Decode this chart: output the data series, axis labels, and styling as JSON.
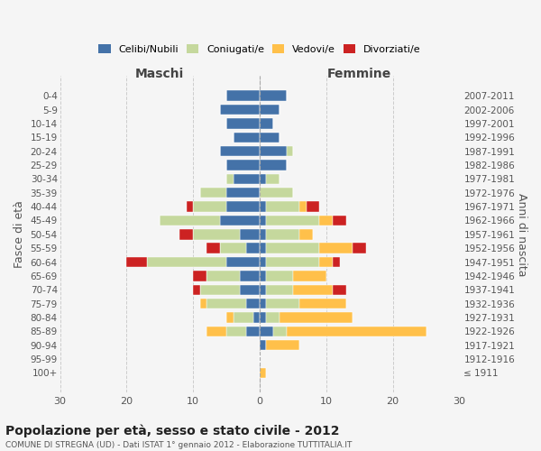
{
  "age_groups": [
    "100+",
    "95-99",
    "90-94",
    "85-89",
    "80-84",
    "75-79",
    "70-74",
    "65-69",
    "60-64",
    "55-59",
    "50-54",
    "45-49",
    "40-44",
    "35-39",
    "30-34",
    "25-29",
    "20-24",
    "15-19",
    "10-14",
    "5-9",
    "0-4"
  ],
  "birth_years": [
    "≤ 1911",
    "1912-1916",
    "1917-1921",
    "1922-1926",
    "1927-1931",
    "1932-1936",
    "1937-1941",
    "1942-1946",
    "1947-1951",
    "1952-1956",
    "1957-1961",
    "1962-1966",
    "1967-1971",
    "1972-1976",
    "1977-1981",
    "1982-1986",
    "1987-1991",
    "1992-1996",
    "1997-2001",
    "2002-2006",
    "2007-2011"
  ],
  "maschi": {
    "celibi": [
      0,
      0,
      0,
      2,
      1,
      2,
      3,
      3,
      5,
      2,
      3,
      6,
      5,
      5,
      4,
      5,
      6,
      4,
      5,
      6,
      5
    ],
    "coniugati": [
      0,
      0,
      0,
      3,
      3,
      6,
      6,
      5,
      12,
      4,
      7,
      9,
      5,
      4,
      1,
      0,
      0,
      0,
      0,
      0,
      0
    ],
    "vedovi": [
      0,
      0,
      0,
      3,
      1,
      1,
      0,
      0,
      0,
      0,
      0,
      0,
      0,
      0,
      0,
      0,
      0,
      0,
      0,
      0,
      0
    ],
    "divorziati": [
      0,
      0,
      0,
      0,
      0,
      0,
      1,
      2,
      3,
      2,
      2,
      0,
      1,
      0,
      0,
      0,
      0,
      0,
      0,
      0,
      0
    ]
  },
  "femmine": {
    "nubili": [
      0,
      0,
      1,
      2,
      1,
      1,
      1,
      1,
      1,
      1,
      1,
      1,
      1,
      0,
      1,
      4,
      4,
      3,
      2,
      3,
      4
    ],
    "coniugate": [
      0,
      0,
      0,
      2,
      2,
      5,
      4,
      4,
      8,
      8,
      5,
      8,
      5,
      5,
      2,
      0,
      1,
      0,
      0,
      0,
      0
    ],
    "vedove": [
      1,
      0,
      5,
      21,
      11,
      7,
      6,
      5,
      2,
      5,
      2,
      2,
      1,
      0,
      0,
      0,
      0,
      0,
      0,
      0,
      0
    ],
    "divorziate": [
      0,
      0,
      0,
      0,
      0,
      0,
      2,
      0,
      1,
      2,
      0,
      2,
      2,
      0,
      0,
      0,
      0,
      0,
      0,
      0,
      0
    ]
  },
  "colors": {
    "celibi": "#4472a8",
    "coniugati": "#c5d89d",
    "vedovi": "#ffc04a",
    "divorziati": "#cc2222"
  },
  "legend_labels": [
    "Celibi/Nubili",
    "Coniugati/e",
    "Vedovi/e",
    "Divorziati/e"
  ],
  "legend_color_keys": [
    "celibi",
    "coniugati",
    "vedovi",
    "divorziati"
  ],
  "title": "Popolazione per età, sesso e stato civile - 2012",
  "subtitle": "COMUNE DI STREGNA (UD) - Dati ISTAT 1° gennaio 2012 - Elaborazione TUTTITALIA.IT",
  "xlabel_left": "Maschi",
  "xlabel_right": "Femmine",
  "ylabel_left": "Fasce di età",
  "ylabel_right": "Anni di nascita",
  "xlim": 30,
  "background_color": "#f5f5f5"
}
